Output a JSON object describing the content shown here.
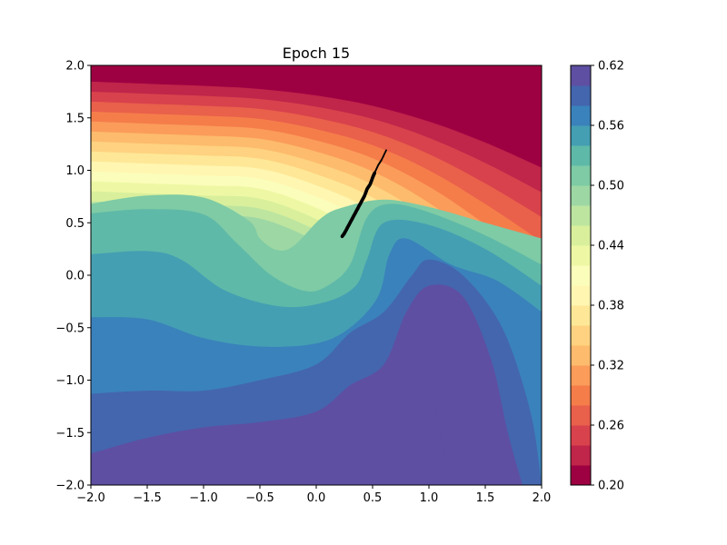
{
  "chart_data": {
    "type": "contourf",
    "title": "Epoch 15",
    "xlabel": "",
    "ylabel": "",
    "xlim": [
      -2.0,
      2.0
    ],
    "ylim": [
      -2.0,
      2.0
    ],
    "xticks": [
      "−2.0",
      "−1.5",
      "−1.0",
      "−0.5",
      "0.0",
      "0.5",
      "1.0",
      "1.5",
      "2.0"
    ],
    "yticks": [
      "−2.0",
      "−1.5",
      "−1.0",
      "−0.5",
      "0.0",
      "0.5",
      "1.0",
      "1.5",
      "2.0"
    ],
    "colorbar": {
      "range": [
        0.2,
        0.62
      ],
      "tick_labels": [
        "0.20",
        "0.26",
        "0.32",
        "0.38",
        "0.44",
        "0.50",
        "0.56",
        "0.62"
      ],
      "levels": [
        0.2,
        0.22,
        0.24,
        0.26,
        0.28,
        0.3,
        0.32,
        0.34,
        0.36,
        0.38,
        0.4,
        0.42,
        0.44,
        0.46,
        0.48,
        0.5,
        0.52,
        0.54,
        0.56,
        0.58,
        0.6,
        0.62
      ],
      "colormap": "Spectral",
      "colors": [
        "#9e0142",
        "#c0254a",
        "#d8424c",
        "#e9604b",
        "#f57d4a",
        "#fb9c5a",
        "#fdbb6d",
        "#fed280",
        "#fee897",
        "#fff6b1",
        "#fbfdba",
        "#eef8a4",
        "#d9ef9b",
        "#bde5a0",
        "#9dd7a4",
        "#7ecba5",
        "#5fb9a8",
        "#449fb3",
        "#3a82bb",
        "#4466ae",
        "#5e4fa2"
      ]
    },
    "grid": false,
    "band_lower_edges": [
      {
        "level": 0.5,
        "points": [
          [
            -2.0,
            0.68
          ],
          [
            -1.5,
            0.76
          ],
          [
            -1.0,
            0.74
          ],
          [
            -0.6,
            0.52
          ],
          [
            -0.5,
            0.35
          ],
          [
            -0.35,
            0.24
          ],
          [
            -0.2,
            0.28
          ],
          [
            0.05,
            0.55
          ],
          [
            0.25,
            0.65
          ],
          [
            0.6,
            0.72
          ],
          [
            1.0,
            0.65
          ],
          [
            1.5,
            0.5
          ],
          [
            2.0,
            0.35
          ]
        ]
      },
      {
        "level": 0.52,
        "points": [
          [
            -2.0,
            0.59
          ],
          [
            -1.5,
            0.63
          ],
          [
            -1.0,
            0.58
          ],
          [
            -0.7,
            0.3
          ],
          [
            -0.4,
            0.0
          ],
          [
            -0.1,
            -0.15
          ],
          [
            0.1,
            -0.1
          ],
          [
            0.3,
            0.1
          ],
          [
            0.45,
            0.55
          ],
          [
            0.65,
            0.68
          ],
          [
            1.0,
            0.6
          ],
          [
            1.5,
            0.38
          ],
          [
            2.0,
            0.1
          ]
        ]
      },
      {
        "level": 0.54,
        "points": [
          [
            -2.0,
            0.2
          ],
          [
            -1.5,
            0.23
          ],
          [
            -1.2,
            0.15
          ],
          [
            -0.8,
            -0.15
          ],
          [
            -0.3,
            -0.3
          ],
          [
            0.1,
            -0.25
          ],
          [
            0.35,
            -0.1
          ],
          [
            0.45,
            0.15
          ],
          [
            0.6,
            0.5
          ],
          [
            1.0,
            0.48
          ],
          [
            1.5,
            0.25
          ],
          [
            2.0,
            -0.1
          ]
        ]
      },
      {
        "level": 0.56,
        "points": [
          [
            -2.0,
            -0.4
          ],
          [
            -1.5,
            -0.42
          ],
          [
            -1.0,
            -0.6
          ],
          [
            -0.5,
            -0.68
          ],
          [
            0.0,
            -0.65
          ],
          [
            0.3,
            -0.5
          ],
          [
            0.55,
            -0.2
          ],
          [
            0.65,
            0.2
          ],
          [
            0.8,
            0.35
          ],
          [
            1.2,
            0.1
          ],
          [
            1.6,
            -0.05
          ],
          [
            2.0,
            -0.35
          ]
        ]
      },
      {
        "level": 0.58,
        "points": [
          [
            -2.0,
            -1.13
          ],
          [
            -1.5,
            -1.1
          ],
          [
            -1.0,
            -1.1
          ],
          [
            -0.5,
            -1.0
          ],
          [
            0.0,
            -0.85
          ],
          [
            0.3,
            -0.55
          ],
          [
            0.6,
            -0.35
          ],
          [
            0.85,
            0.0
          ],
          [
            1.0,
            0.15
          ],
          [
            1.3,
            0.0
          ],
          [
            1.65,
            -0.5
          ],
          [
            1.9,
            -1.3
          ],
          [
            2.0,
            -2.0
          ]
        ]
      },
      {
        "level": 0.6,
        "points": [
          [
            -2.0,
            -1.7
          ],
          [
            -1.5,
            -1.55
          ],
          [
            -1.0,
            -1.45
          ],
          [
            -0.5,
            -1.4
          ],
          [
            0.0,
            -1.3
          ],
          [
            0.3,
            -1.05
          ],
          [
            0.6,
            -0.85
          ],
          [
            0.8,
            -0.35
          ],
          [
            1.0,
            -0.1
          ],
          [
            1.3,
            -0.2
          ],
          [
            1.55,
            -0.8
          ],
          [
            1.7,
            -1.5
          ],
          [
            1.83,
            -2.0
          ]
        ]
      },
      {
        "level": 0.62,
        "points": [
          [
            -1.4,
            -2.0
          ],
          [
            -0.9,
            -1.75
          ],
          [
            -0.5,
            -1.5
          ],
          [
            0.0,
            -1.3
          ],
          [
            0.4,
            -1.15
          ],
          [
            0.9,
            -0.95
          ],
          [
            1.0,
            -1.0
          ],
          [
            1.1,
            -1.5
          ],
          [
            1.2,
            -2.0
          ]
        ]
      }
    ],
    "upper_bands": {
      "x": [
        -2.0,
        -1.5,
        -1.0,
        -0.5,
        0.0,
        0.5,
        1.0,
        1.5,
        2.0
      ],
      "top_y": [
        1.94,
        1.92,
        1.9,
        1.87,
        1.84,
        1.82,
        1.8,
        1.78,
        1.76
      ],
      "top_drop": [
        0.0,
        0.0,
        0.0,
        0.0,
        0.02,
        0.08,
        0.18,
        0.32,
        0.5
      ],
      "band_step": 0.095,
      "band_spread": [
        0.0,
        0.0,
        0.0,
        0.0,
        0.012,
        0.03,
        0.06,
        0.1,
        0.14
      ]
    },
    "scatter": {
      "name": "",
      "color": "#000000",
      "x": [
        0.23,
        0.25,
        0.27,
        0.29,
        0.31,
        0.33,
        0.35,
        0.37,
        0.39,
        0.41,
        0.43,
        0.45,
        0.48,
        0.5,
        0.52,
        0.55,
        0.58,
        0.62
      ],
      "y": [
        0.37,
        0.4,
        0.44,
        0.48,
        0.52,
        0.56,
        0.6,
        0.64,
        0.68,
        0.72,
        0.76,
        0.82,
        0.87,
        0.93,
        0.98,
        1.05,
        1.1,
        1.19
      ]
    }
  }
}
